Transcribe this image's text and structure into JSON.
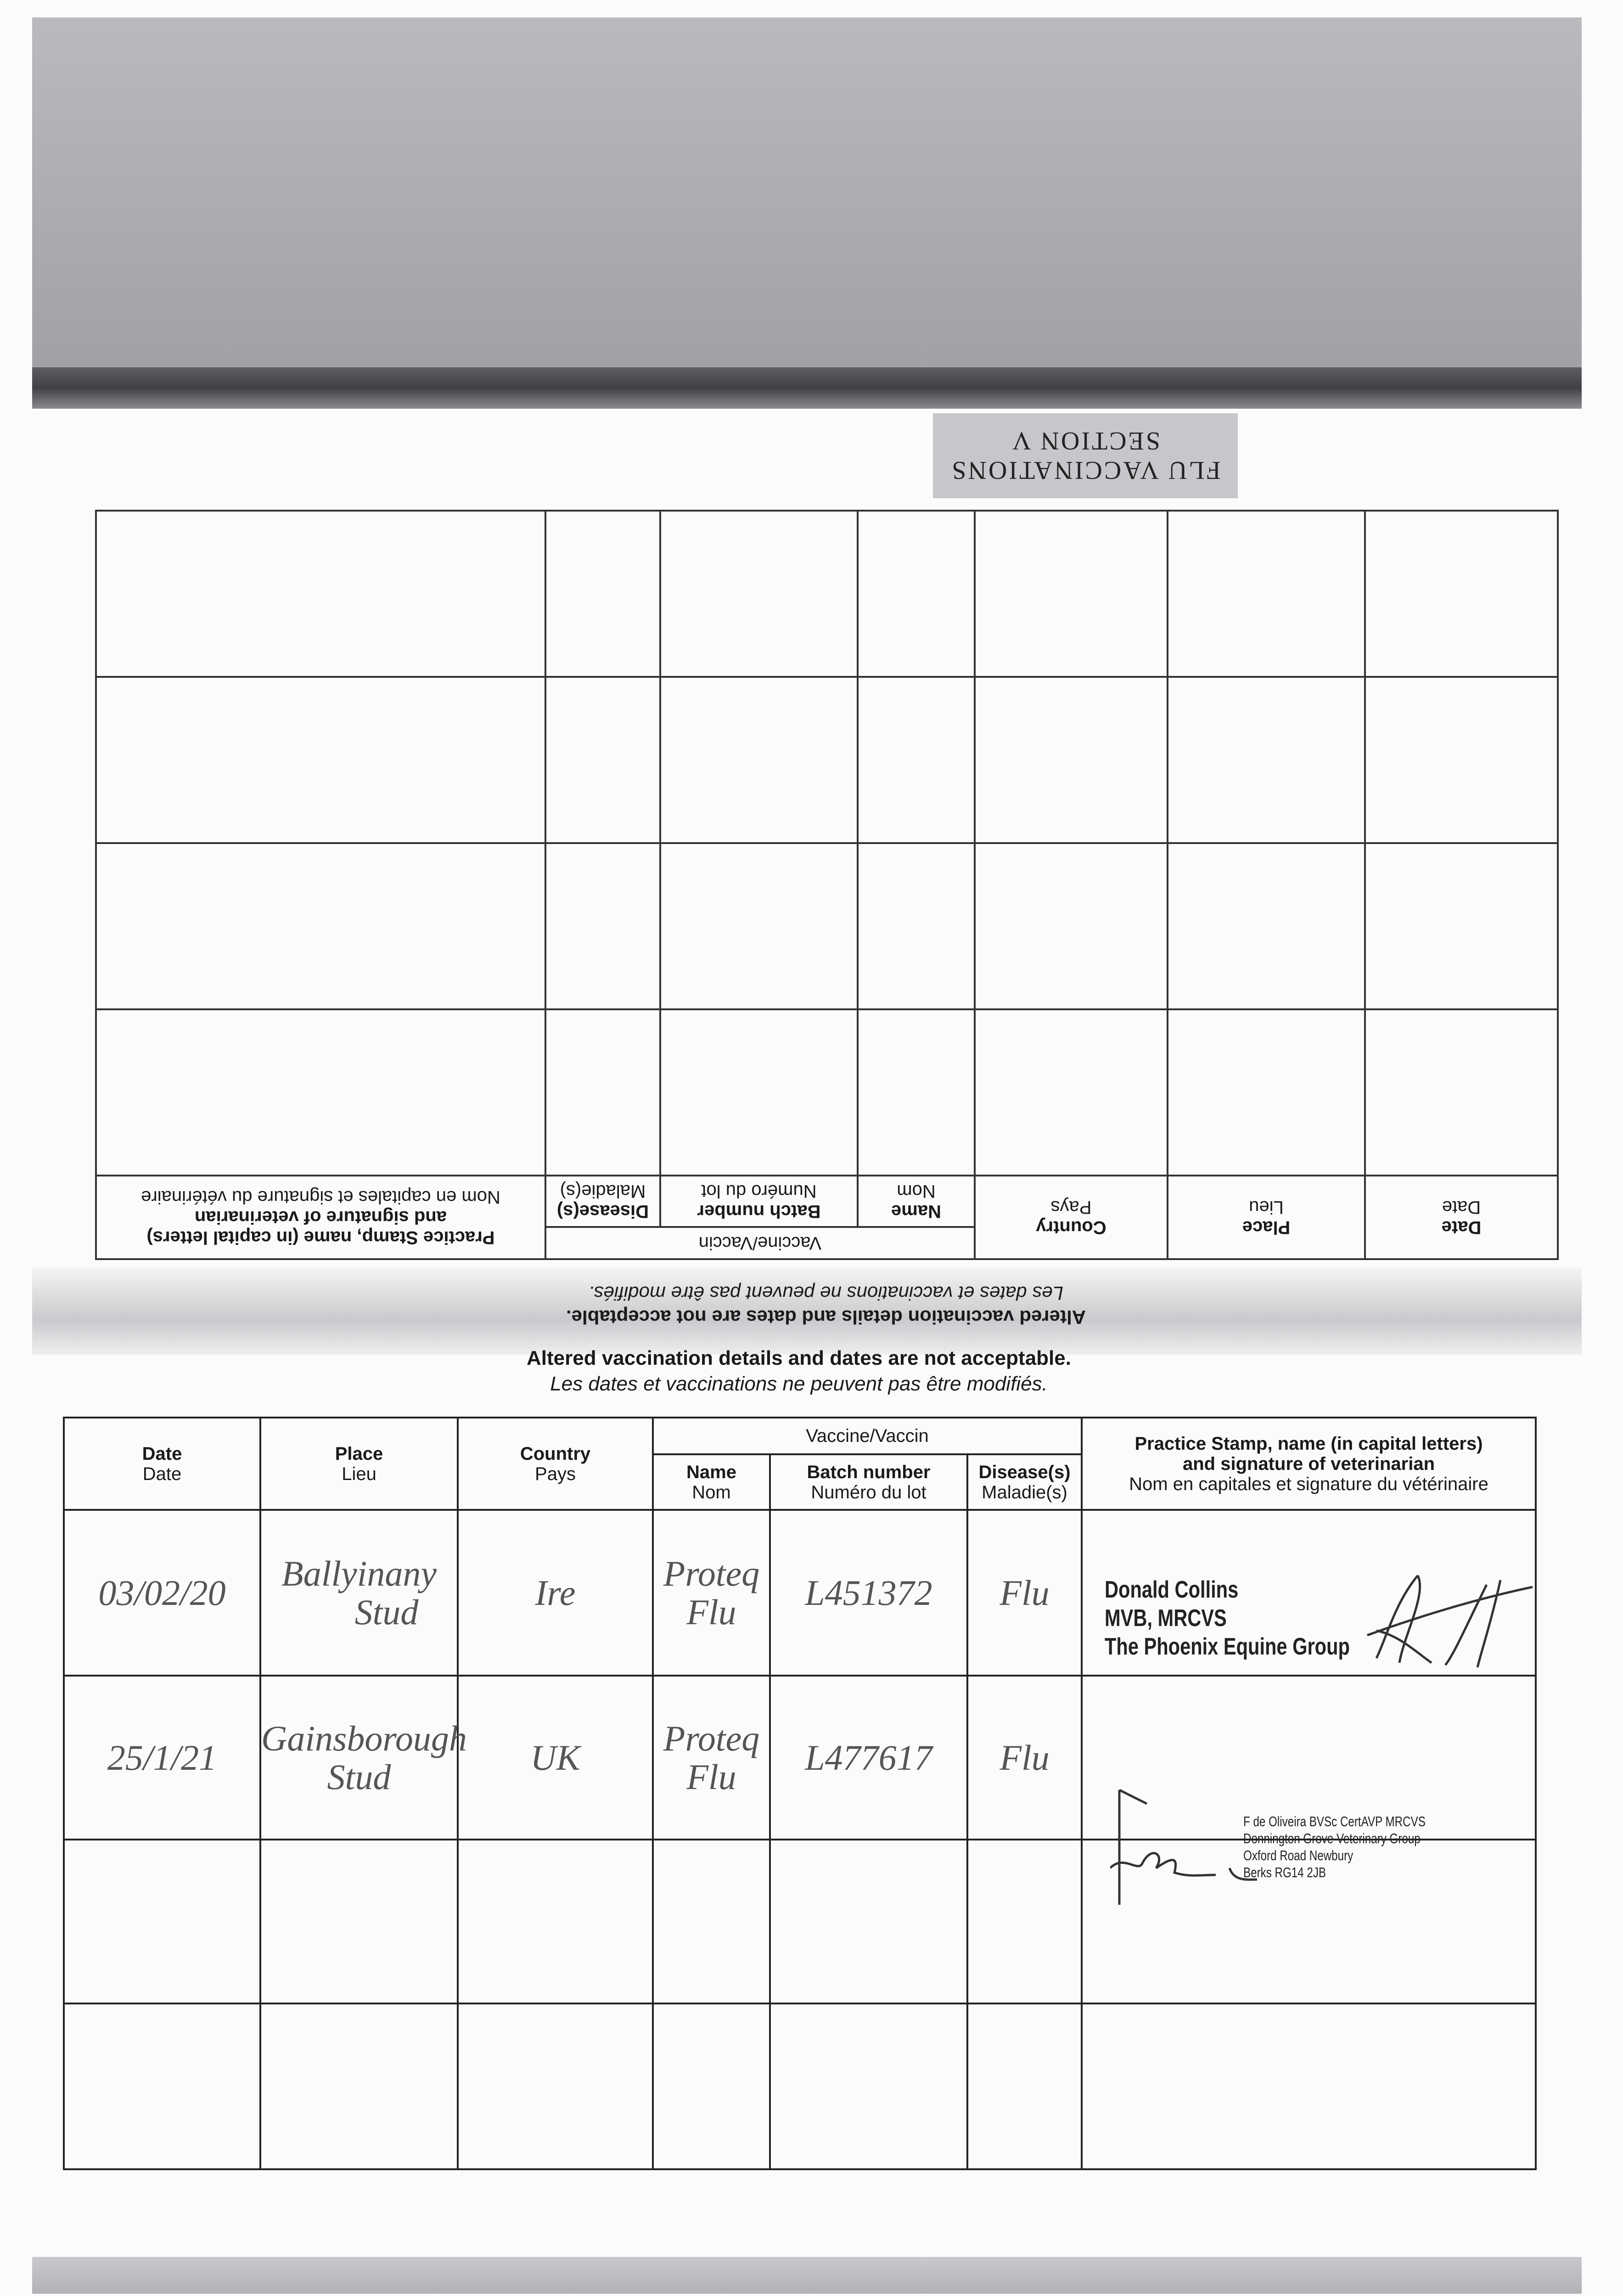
{
  "section_tab": {
    "line1": "FLU VACCINATIONS",
    "line2": "SECTION V"
  },
  "headers": {
    "date": {
      "en": "Date",
      "fr": "Date"
    },
    "place": {
      "en": "Place",
      "fr": "Lieu"
    },
    "country": {
      "en": "Country",
      "fr": "Pays"
    },
    "vaccine": "Vaccine/Vaccin",
    "name": {
      "en": "Name",
      "fr": "Nom"
    },
    "batch": {
      "en": "Batch number",
      "fr": "Numéro du lot"
    },
    "disease": {
      "en": "Disease(s)",
      "fr": "Maladie(s)"
    },
    "practice": {
      "en1": "Practice Stamp, name (in capital letters)",
      "en2": "and signature of veterinarian",
      "fr": "Nom en capitales et signature du vétérinaire"
    }
  },
  "notice": {
    "en": "Altered vaccination details and dates are not acceptable.",
    "fr": "Les dates et vaccinations ne peuvent pas être modifiés."
  },
  "rows": [
    {
      "date": "03/02/20",
      "place1": "Ballyinany",
      "place2": "Stud",
      "country": "Ire",
      "name1": "Proteq",
      "name2": "Flu",
      "batch": "L451372",
      "disease": "Flu",
      "stamp": {
        "line1": "Donald Collins",
        "line2": "MVB, MRCVS",
        "line3": "The Phoenix Equine Group"
      }
    },
    {
      "date": "25/1/21",
      "place1": "Gainsborough",
      "place2": "Stud",
      "country": "UK",
      "name1": "Proteq",
      "name2": "Flu",
      "batch": "L477617",
      "disease": "Flu",
      "stamp": {
        "line1": "F de Oliveira BVSc CertAVP MRCVS",
        "line2": "Donnington Grove Veterinary Group",
        "line3": "Oxford Road Newbury",
        "line4": "Berks RG14 2JB"
      }
    }
  ]
}
